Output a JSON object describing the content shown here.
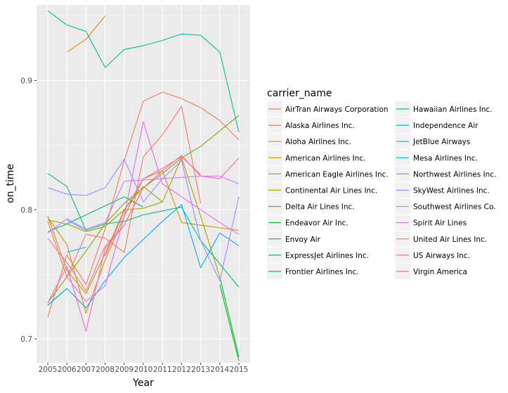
{
  "chart_data": {
    "type": "line",
    "xlabel": "Year",
    "ylabel": "on_time",
    "legend_title": "carrier_name",
    "legend_placement": "right",
    "grid": true,
    "xlim": [
      2005,
      2015
    ],
    "ylim": [
      0.6815,
      0.9585
    ],
    "x_ticks": [
      2005,
      2006,
      2007,
      2008,
      2009,
      2010,
      2011,
      2012,
      2013,
      2014,
      2015
    ],
    "y_ticks": [
      0.7,
      0.8,
      0.9
    ],
    "y_tick_labels": [
      "0.7",
      "0.8",
      "0.9"
    ],
    "colors": {
      "panel_background": "#EBEBEB",
      "grid_major": "#FFFFFF",
      "axis_text": "#4D4D4D"
    },
    "series": [
      {
        "name": "AirTran Airways Corporation",
        "color": "#F8766D",
        "x": [
          2005,
          2006,
          2007,
          2008,
          2009,
          2010,
          2011,
          2012,
          2013
        ],
        "y": [
          0.791,
          0.748,
          0.781,
          0.778,
          0.767,
          0.841,
          0.858,
          0.88,
          0.805
        ]
      },
      {
        "name": "Alaska Airlines Inc.",
        "color": "#F07D56",
        "x": [
          2005,
          2006,
          2007,
          2008,
          2009,
          2010,
          2011,
          2012,
          2013,
          2014,
          2015
        ],
        "y": [
          0.717,
          0.765,
          0.742,
          0.785,
          0.838,
          0.884,
          0.891,
          0.886,
          0.879,
          0.869,
          0.854
        ]
      },
      {
        "name": "Aloha Airlines Inc.",
        "color": "#E68613",
        "x": [
          2006,
          2007,
          2008
        ],
        "y": [
          0.922,
          0.932,
          0.95
        ]
      },
      {
        "name": "American Airlines Inc.",
        "color": "#D89000",
        "x": [
          2005,
          2006,
          2007,
          2008,
          2009,
          2010,
          2011,
          2012,
          2013,
          2014,
          2015
        ],
        "y": [
          0.794,
          0.773,
          0.72,
          0.761,
          0.795,
          0.824,
          0.83,
          0.79,
          0.788,
          0.786,
          0.784
        ]
      },
      {
        "name": "American Eagle Airlines Inc.",
        "color": "#B79F00",
        "x": [
          2005,
          2006,
          2007,
          2008,
          2009,
          2010,
          2011,
          2012,
          2013,
          2014
        ],
        "y": [
          0.795,
          0.753,
          0.735,
          0.766,
          0.8,
          0.801,
          0.806,
          0.84,
          0.795,
          0.748
        ]
      },
      {
        "name": "Continental Air Lines Inc.",
        "color": "#9FA600",
        "x": [
          2005,
          2006,
          2007,
          2008,
          2009,
          2010,
          2011
        ],
        "y": [
          0.792,
          0.789,
          0.783,
          0.787,
          0.8,
          0.818,
          0.806
        ]
      },
      {
        "name": "Delta Air Lines Inc.",
        "color": "#7CAE00",
        "x": [
          2005,
          2006,
          2007,
          2008,
          2009,
          2010,
          2011,
          2012,
          2013,
          2014,
          2015
        ],
        "y": [
          0.728,
          0.748,
          0.768,
          0.789,
          0.805,
          0.817,
          0.828,
          0.84,
          0.849,
          0.861,
          0.873
        ]
      },
      {
        "name": "Endeavor Air Inc.",
        "color": "#00B81F",
        "x": [
          2014,
          2015
        ],
        "y": [
          0.742,
          0.683
        ]
      },
      {
        "name": "Envoy Air",
        "color": "#00BA42",
        "x": [
          2014,
          2015
        ],
        "y": [
          0.748,
          0.686
        ]
      },
      {
        "name": "ExpressJet Airlines Inc.",
        "color": "#00BE67",
        "x": [
          2005,
          2006,
          2007,
          2008,
          2009,
          2010
        ],
        "y": [
          0.783,
          0.789,
          0.796,
          0.803,
          0.81,
          0.802
        ]
      },
      {
        "name": "Frontier Airlines Inc.",
        "color": "#00BF7D",
        "x": [
          2005,
          2006,
          2007,
          2008,
          2009,
          2010,
          2011,
          2012,
          2013,
          2014,
          2015
        ],
        "y": [
          0.828,
          0.818,
          0.784,
          0.789,
          0.791,
          0.796,
          0.799,
          0.802,
          0.776,
          0.758,
          0.74
        ]
      },
      {
        "name": "Hawaiian Airlines Inc.",
        "color": "#00C19A",
        "x": [
          2005,
          2006,
          2007,
          2008,
          2009,
          2010,
          2011,
          2012,
          2013,
          2014,
          2015
        ],
        "y": [
          0.954,
          0.943,
          0.938,
          0.91,
          0.924,
          0.927,
          0.931,
          0.936,
          0.935,
          0.922,
          0.86
        ]
      },
      {
        "name": "Independence Air",
        "color": "#00BFC4",
        "x": [
          2005,
          2006
        ],
        "y": [
          0.726,
          0.739
        ]
      },
      {
        "name": "JetBlue Airways",
        "color": "#00B9E3",
        "x": [
          2006,
          2007
        ],
        "y": [
          0.767,
          0.771
        ]
      },
      {
        "name": "Mesa Airlines Inc.",
        "color": "#00ADFA",
        "x": [
          2005,
          2006,
          2007,
          2008,
          2009,
          2010,
          2011,
          2012,
          2013,
          2014,
          2015
        ],
        "y": [
          0.726,
          0.739,
          0.724,
          0.745,
          0.763,
          0.777,
          0.791,
          0.804,
          0.755,
          0.782,
          0.772
        ]
      },
      {
        "name": "Northwest Airlines Inc.",
        "color": "#619CFF",
        "x": [
          2006,
          2007
        ],
        "y": [
          0.792,
          0.784
        ]
      },
      {
        "name": "SkyWest Airlines Inc.",
        "color": "#9F8CFF",
        "x": [
          2005,
          2006,
          2007,
          2008,
          2009,
          2010,
          2011,
          2012,
          2013,
          2014,
          2015
        ],
        "y": [
          0.817,
          0.812,
          0.811,
          0.817,
          0.839,
          0.806,
          0.824,
          0.838,
          0.776,
          0.745,
          0.81
        ]
      },
      {
        "name": "Southwest Airlines Co.",
        "color": "#C77CFF",
        "x": [
          2005,
          2006,
          2007,
          2008,
          2009,
          2010,
          2011,
          2012,
          2013,
          2014,
          2015
        ],
        "y": [
          0.782,
          0.793,
          0.785,
          0.79,
          0.822,
          0.823,
          0.824,
          0.825,
          0.826,
          0.826,
          0.82
        ]
      },
      {
        "name": "Spirit Air Lines",
        "color": "#E76BF3",
        "x": [
          2006,
          2007,
          2008,
          2009,
          2010,
          2011,
          2012,
          2013,
          2014,
          2015
        ],
        "y": [
          0.748,
          0.729,
          0.741,
          0.795,
          0.868,
          0.82,
          0.81,
          0.8,
          0.79,
          0.781
        ]
      },
      {
        "name": "United Air Lines Inc.",
        "color": "#FD61D1",
        "x": [
          2005,
          2006,
          2007,
          2008,
          2009,
          2010
        ],
        "y": [
          0.728,
          0.756,
          0.706,
          0.77,
          0.788,
          0.817
        ]
      },
      {
        "name": "US Airways Inc.",
        "color": "#FF6C91",
        "x": [
          2005,
          2006,
          2007,
          2008,
          2009,
          2010,
          2011,
          2012,
          2013,
          2014,
          2015
        ],
        "y": [
          0.778,
          0.759,
          0.737,
          0.772,
          0.788,
          0.817,
          0.83,
          0.842,
          0.826,
          0.824,
          0.84
        ]
      },
      {
        "name": "Virgin America",
        "color": "#FF699C",
        "x": [
          2008,
          2009,
          2010,
          2011,
          2012,
          2013
        ],
        "y": [
          0.764,
          0.799,
          0.824,
          0.832,
          0.841,
          0.827
        ]
      }
    ]
  }
}
